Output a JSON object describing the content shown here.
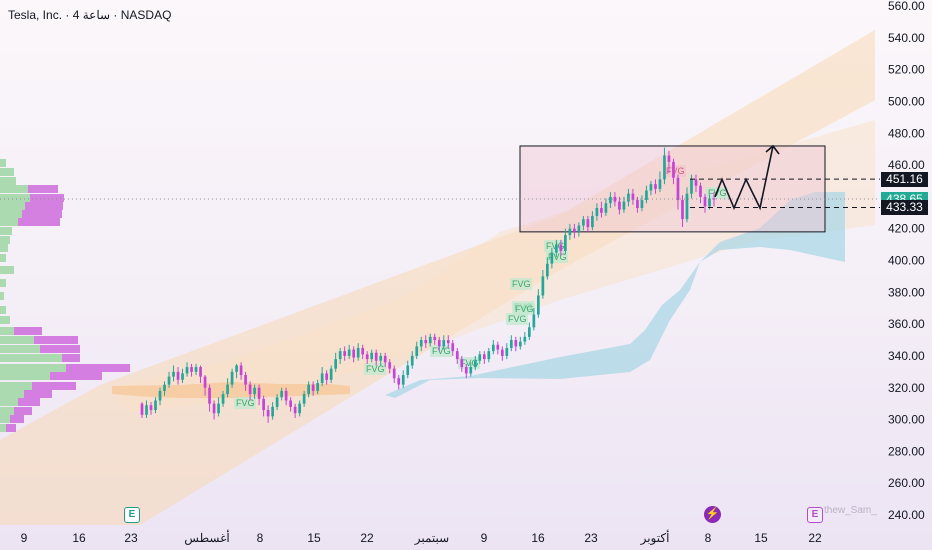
{
  "header": {
    "symbol": "Tesla, Inc.",
    "interval": "4 ساعة",
    "exchange": "NASDAQ",
    "separator": "·"
  },
  "price_tags": {
    "upper": {
      "value": "451.16",
      "color": "#131722"
    },
    "current": {
      "value": "438.65",
      "color": "#22ab94"
    },
    "lower": {
      "value": "433.33",
      "color": "#131722"
    }
  },
  "badges": {
    "earnings_1": "E",
    "earnings_2": "E",
    "dividend_icon": "lightning-icon"
  },
  "watermark": "thew_Sam_",
  "colors": {
    "up": "#26a69a",
    "down": "#c544d6",
    "fvg_up_fill": "#bfe8cf",
    "fvg_down_fill": "#f2c2cc",
    "cloud": "#a6d6e6",
    "orange_band": "#f6c696",
    "channel": "#f8d9b4",
    "box_fill": "#f0c6d4",
    "profile_up": "#9fd6a3",
    "profile_down": "#c85ad8"
  },
  "chart_data": {
    "type": "candlestick",
    "y_axis": {
      "range": [
        235,
        565
      ],
      "ticks": [
        240,
        260,
        280,
        300,
        320,
        340,
        360,
        380,
        400,
        420,
        440,
        460,
        480,
        500,
        520,
        540,
        560
      ],
      "tick_labels": [
        "240.00",
        "260.00",
        "280.00",
        "300.00",
        "320.00",
        "340.00",
        "360.00",
        "380.00",
        "400.00",
        "420.00",
        "440.00",
        "460.00",
        "480.00",
        "500.00",
        "520.00",
        "540.00",
        "560.00"
      ],
      "position": "right"
    },
    "x_axis": {
      "tick_labels": [
        "9",
        "16",
        "23",
        "أغسطس",
        "8",
        "15",
        "22",
        "سبتمبر",
        "9",
        "16",
        "23",
        "أكتوبر",
        "8",
        "15",
        "22"
      ],
      "tick_x": [
        24,
        79,
        131,
        207,
        260,
        314,
        367,
        432,
        484,
        538,
        591,
        655,
        708,
        761,
        815
      ]
    },
    "candles": [
      [
        310,
        303,
        311,
        301
      ],
      [
        303,
        309,
        312,
        301
      ],
      [
        309,
        306,
        311,
        303
      ],
      [
        306,
        312,
        314,
        304
      ],
      [
        312,
        318,
        320,
        309
      ],
      [
        318,
        322,
        324,
        315
      ],
      [
        322,
        327,
        330,
        320
      ],
      [
        327,
        330,
        334,
        324
      ],
      [
        330,
        325,
        333,
        322
      ],
      [
        325,
        329,
        332,
        323
      ],
      [
        329,
        333,
        336,
        327
      ],
      [
        333,
        330,
        335,
        327
      ],
      [
        330,
        333,
        335,
        328
      ],
      [
        333,
        327,
        334,
        323
      ],
      [
        327,
        320,
        328,
        315
      ],
      [
        320,
        310,
        322,
        305
      ],
      [
        310,
        304,
        312,
        300
      ],
      [
        304,
        310,
        314,
        302
      ],
      [
        310,
        316,
        318,
        308
      ],
      [
        316,
        322,
        326,
        314
      ],
      [
        322,
        330,
        332,
        320
      ],
      [
        330,
        334,
        335,
        326
      ],
      [
        334,
        328,
        336,
        325
      ],
      [
        328,
        322,
        330,
        318
      ],
      [
        322,
        316,
        324,
        312
      ],
      [
        316,
        320,
        322,
        313
      ],
      [
        320,
        313,
        322,
        309
      ],
      [
        313,
        306,
        315,
        302
      ],
      [
        306,
        302,
        309,
        298
      ],
      [
        302,
        308,
        311,
        300
      ],
      [
        308,
        314,
        316,
        306
      ],
      [
        314,
        318,
        320,
        312
      ],
      [
        318,
        312,
        320,
        309
      ],
      [
        312,
        308,
        314,
        305
      ],
      [
        308,
        304,
        310,
        301
      ],
      [
        304,
        310,
        312,
        302
      ],
      [
        310,
        316,
        318,
        308
      ],
      [
        316,
        322,
        324,
        314
      ],
      [
        322,
        318,
        324,
        315
      ],
      [
        318,
        323,
        325,
        316
      ],
      [
        323,
        329,
        333,
        321
      ],
      [
        329,
        325,
        331,
        322
      ],
      [
        325,
        332,
        334,
        323
      ],
      [
        332,
        338,
        342,
        330
      ],
      [
        338,
        343,
        345,
        335
      ],
      [
        343,
        340,
        346,
        337
      ],
      [
        340,
        344,
        347,
        338
      ],
      [
        344,
        339,
        346,
        336
      ],
      [
        339,
        345,
        348,
        337
      ],
      [
        345,
        341,
        347,
        338
      ],
      [
        341,
        338,
        343,
        335
      ],
      [
        338,
        342,
        344,
        336
      ],
      [
        342,
        337,
        344,
        334
      ],
      [
        337,
        340,
        342,
        334
      ],
      [
        340,
        336,
        342,
        333
      ],
      [
        336,
        332,
        338,
        329
      ],
      [
        332,
        326,
        334,
        323
      ],
      [
        326,
        322,
        328,
        319
      ],
      [
        322,
        328,
        331,
        320
      ],
      [
        328,
        334,
        337,
        326
      ],
      [
        334,
        340,
        343,
        332
      ],
      [
        340,
        346,
        349,
        338
      ],
      [
        346,
        350,
        352,
        343
      ],
      [
        350,
        348,
        353,
        345
      ],
      [
        348,
        352,
        354,
        346
      ],
      [
        352,
        350,
        354,
        347
      ],
      [
        350,
        346,
        352,
        343
      ],
      [
        346,
        350,
        353,
        344
      ],
      [
        350,
        348,
        353,
        345
      ],
      [
        348,
        343,
        350,
        340
      ],
      [
        343,
        338,
        345,
        335
      ],
      [
        338,
        333,
        340,
        330
      ],
      [
        333,
        329,
        335,
        326
      ],
      [
        329,
        333,
        336,
        327
      ],
      [
        333,
        337,
        340,
        331
      ],
      [
        337,
        341,
        343,
        335
      ],
      [
        341,
        338,
        343,
        335
      ],
      [
        338,
        343,
        345,
        336
      ],
      [
        343,
        347,
        350,
        341
      ],
      [
        347,
        344,
        349,
        341
      ],
      [
        344,
        340,
        346,
        337
      ],
      [
        340,
        345,
        348,
        338
      ],
      [
        345,
        350,
        353,
        343
      ],
      [
        350,
        346,
        352,
        343
      ],
      [
        346,
        349,
        352,
        344
      ],
      [
        349,
        352,
        355,
        347
      ],
      [
        352,
        358,
        361,
        350
      ],
      [
        358,
        366,
        370,
        356
      ],
      [
        366,
        378,
        382,
        364
      ],
      [
        378,
        390,
        394,
        376
      ],
      [
        390,
        398,
        402,
        388
      ],
      [
        398,
        405,
        408,
        395
      ],
      [
        405,
        410,
        413,
        402
      ],
      [
        410,
        406,
        413,
        403
      ],
      [
        406,
        416,
        420,
        404
      ],
      [
        416,
        420,
        423,
        413
      ],
      [
        420,
        418,
        423,
        414
      ],
      [
        418,
        422,
        424,
        415
      ],
      [
        422,
        426,
        428,
        419
      ],
      [
        426,
        421,
        428,
        418
      ],
      [
        421,
        428,
        431,
        419
      ],
      [
        428,
        433,
        436,
        425
      ],
      [
        433,
        430,
        437,
        427
      ],
      [
        430,
        436,
        439,
        428
      ],
      [
        436,
        440,
        443,
        433
      ],
      [
        440,
        437,
        443,
        434
      ],
      [
        437,
        432,
        440,
        429
      ],
      [
        432,
        437,
        440,
        430
      ],
      [
        437,
        442,
        445,
        434
      ],
      [
        442,
        438,
        445,
        435
      ],
      [
        438,
        433,
        440,
        430
      ],
      [
        433,
        438,
        441,
        431
      ],
      [
        438,
        444,
        447,
        436
      ],
      [
        444,
        448,
        450,
        441
      ],
      [
        448,
        445,
        451,
        442
      ],
      [
        445,
        451,
        456,
        443
      ],
      [
        451,
        466,
        471,
        448
      ],
      [
        466,
        462,
        469,
        455
      ],
      [
        462,
        452,
        464,
        448
      ],
      [
        452,
        438,
        454,
        432
      ],
      [
        438,
        426,
        441,
        421
      ],
      [
        426,
        442,
        446,
        424
      ],
      [
        442,
        451,
        454,
        439
      ],
      [
        451,
        447,
        454,
        443
      ],
      [
        447,
        440,
        449,
        436
      ],
      [
        440,
        434,
        442,
        430
      ],
      [
        434,
        439,
        441,
        432
      ],
      [
        439,
        438.65,
        443,
        434
      ]
    ],
    "candle_x": {
      "start": 142,
      "end": 714
    },
    "annotations": {
      "range_box": {
        "top": 472,
        "bottom": 418,
        "label": ""
      },
      "fvg_labels": [
        {
          "text": "FVG",
          "kind": "up"
        },
        {
          "text": "FVG",
          "kind": "up"
        },
        {
          "text": "FVG",
          "kind": "up"
        },
        {
          "text": "FVG",
          "kind": "up"
        },
        {
          "text": "FVG",
          "kind": "up"
        },
        {
          "text": "FVG",
          "kind": "up"
        },
        {
          "text": "FVG",
          "kind": "up"
        },
        {
          "text": "FVG",
          "kind": "up"
        },
        {
          "text": "FVG",
          "kind": "up"
        },
        {
          "text": "FVG",
          "kind": "up"
        },
        {
          "text": "FVG",
          "kind": "down"
        },
        {
          "text": "FVG",
          "kind": "up"
        }
      ],
      "resistance": 451.16,
      "support": 433.33,
      "projection_path": [
        [
          715,
          440
        ],
        [
          722,
          451
        ],
        [
          734,
          433
        ],
        [
          746,
          451
        ],
        [
          760,
          433
        ],
        [
          773,
          472
        ]
      ]
    }
  }
}
